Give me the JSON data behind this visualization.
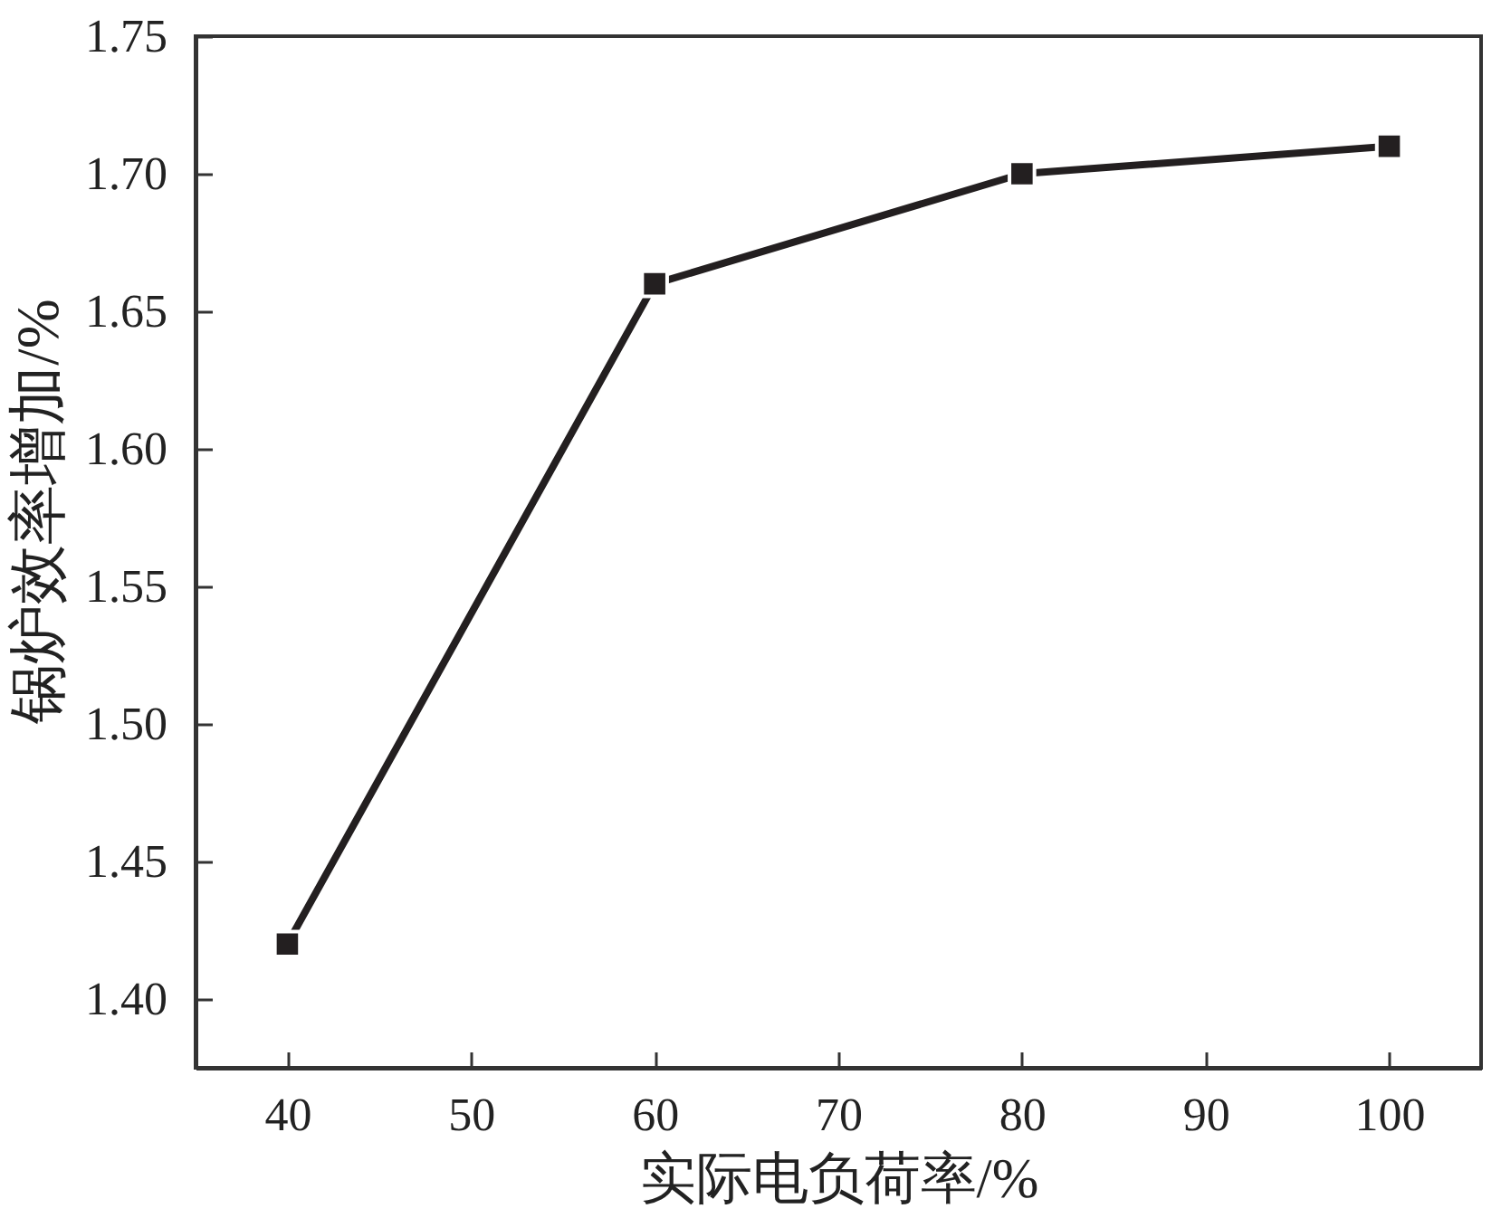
{
  "chart_data": {
    "type": "line",
    "xlabel": "实际电负荷率/%",
    "ylabel": "锅炉效率增加/%",
    "x": [
      40,
      60,
      80,
      100
    ],
    "values": [
      1.42,
      1.66,
      1.7,
      1.71
    ],
    "color": "#231f20",
    "marker": "square",
    "line_style": "solid",
    "xlim": [
      35,
      105
    ],
    "ylim": [
      1.375,
      1.75
    ],
    "xticks": [
      40,
      50,
      60,
      70,
      80,
      90,
      100
    ],
    "yticks": [
      {
        "value": 1.4,
        "label": "1.40"
      },
      1.45,
      {
        "value": 1.5,
        "label": "1.50"
      },
      1.55,
      {
        "value": 1.6,
        "label": "1.60"
      },
      1.65,
      {
        "value": 1.7,
        "label": "1.70"
      },
      1.75
    ],
    "grid": false
  }
}
